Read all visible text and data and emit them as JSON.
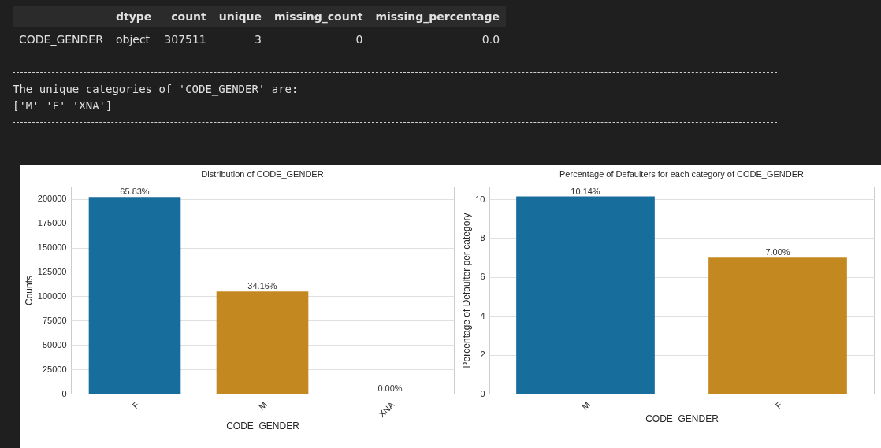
{
  "chart_data": [
    {
      "type": "other",
      "categories": [
        "dtype",
        "count",
        "unique",
        "missing_count",
        "missing_percentage"
      ],
      "y_categories": [
        "CODE_GENDER"
      ],
      "cell_labels": [
        [
          "object",
          "307511",
          "3",
          "0",
          "0.0"
        ]
      ],
      "annotations": [
        "The unique categories of 'CODE_GENDER' are:",
        "['M' 'F' 'XNA']"
      ]
    },
    {
      "type": "bar",
      "title": "Distribution of CODE_GENDER",
      "xlabel": "CODE_GENDER",
      "ylabel": "Counts",
      "categories": [
        "F",
        "M",
        "XNA"
      ],
      "values": [
        202000,
        105000,
        0
      ],
      "colors": [
        "#176d9c",
        "#c48820",
        "#c48820"
      ],
      "annotations": [
        {
          "text": "65.83%",
          "x": "F",
          "y": 202000
        },
        {
          "text": "34.16%",
          "x": "M",
          "y": 105000
        },
        {
          "text": "0.00%",
          "x": "XNA",
          "y": 0
        }
      ],
      "ylim": [
        0,
        212700
      ],
      "yticks": [
        0,
        25000,
        50000,
        75000,
        100000,
        125000,
        150000,
        175000,
        200000
      ],
      "grid": "y"
    },
    {
      "type": "bar",
      "title": "Percentage of Defaulters for each category of CODE_GENDER",
      "xlabel": "CODE_GENDER",
      "ylabel": "Percentage of Defaulter per category",
      "categories": [
        "M",
        "F"
      ],
      "values": [
        10.14,
        7.0
      ],
      "colors": [
        "#176d9c",
        "#c48820"
      ],
      "value_labels": [
        "10.14%",
        "7.00%"
      ],
      "ylim": [
        0,
        10.65
      ],
      "yticks": [
        0,
        2,
        4,
        6,
        8,
        10
      ],
      "grid": "y"
    }
  ]
}
